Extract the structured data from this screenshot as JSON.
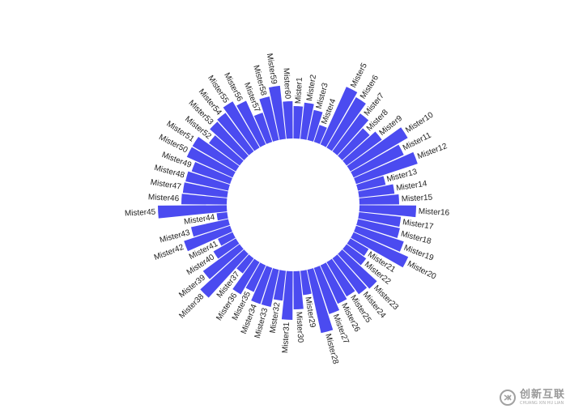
{
  "chart_data": {
    "type": "bar",
    "layout": "circular",
    "bar_color": "#4b4bf0",
    "categories": [
      "Mister1",
      "Mister2",
      "Mister3",
      "Mister4",
      "Mister5",
      "Mister6",
      "Mister7",
      "Mister8",
      "Mister9",
      "Mister10",
      "Mister11",
      "Mister12",
      "Mister13",
      "Mister14",
      "Mister15",
      "Mister16",
      "Mister17",
      "Mister18",
      "Mister19",
      "Mister20",
      "Mister21",
      "Mister22",
      "Mister23",
      "Mister24",
      "Mister25",
      "Mister26",
      "Mister27",
      "Mister28",
      "Mister29",
      "Mister30",
      "Mister31",
      "Mister32",
      "Mister33",
      "Mister34",
      "Mister35",
      "Mister36",
      "Mister37",
      "Mister38",
      "Mister39",
      "Mister40",
      "Mister41",
      "Mister42",
      "Mister43",
      "Mister44",
      "Mister45",
      "Mister46",
      "Mister47",
      "Mister48",
      "Mister49",
      "Mister50",
      "Mister51",
      "Mister52",
      "Mister53",
      "Mister54",
      "Mister55",
      "Mister56",
      "Mister57",
      "Mister58",
      "Mister59",
      "Mister60"
    ],
    "values": [
      40,
      45,
      38,
      22,
      78,
      72,
      58,
      46,
      54,
      82,
      68,
      80,
      35,
      44,
      49,
      70,
      52,
      53,
      62,
      74,
      26,
      30,
      58,
      55,
      49,
      52,
      60,
      80,
      30,
      47,
      60,
      37,
      47,
      47,
      36,
      46,
      23,
      73,
      56,
      32,
      20,
      60,
      47,
      13,
      85,
      56,
      55,
      54,
      50,
      62,
      62,
      47,
      57,
      59,
      66,
      59,
      38,
      55,
      66,
      46
    ],
    "title": "",
    "xlabel": "",
    "ylabel": "",
    "grid": false,
    "legend": "none"
  },
  "watermark": {
    "logo_icon": "cx-logo-icon",
    "main": "创新互联",
    "sub": "CHUANG XIN HU LIAN"
  }
}
